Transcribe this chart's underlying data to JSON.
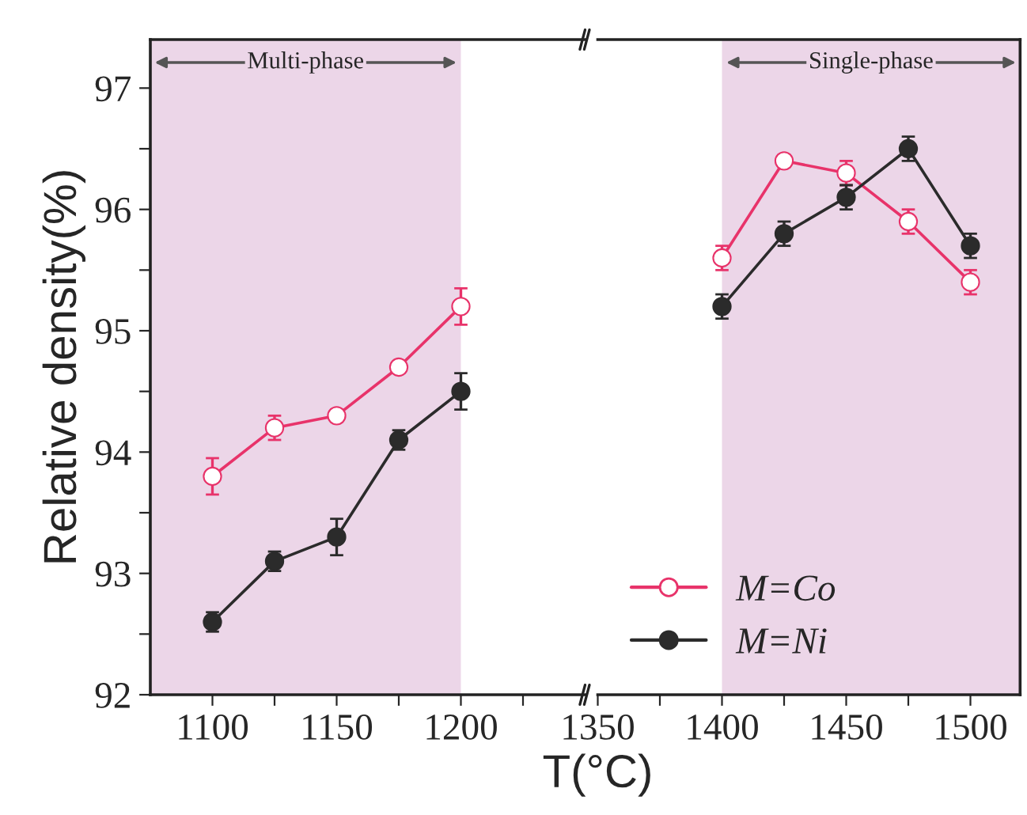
{
  "chart_data": [
    {
      "type": "line",
      "ylabel": "Relative density(%)",
      "x": [
        1100,
        1125,
        1150,
        1175,
        1200
      ],
      "xlim": [
        1075,
        1250
      ],
      "xticks": [
        1100,
        {
          "value": 1125,
          "label": null
        },
        1150,
        {
          "value": 1175,
          "label": null
        },
        1200,
        {
          "value": 1225,
          "label": null
        }
      ],
      "ylim": [
        92,
        97.4
      ],
      "yticks": [
        92,
        {
          "value": 92.5,
          "label": null
        },
        93,
        {
          "value": 93.5,
          "label": null
        },
        94,
        {
          "value": 94.5,
          "label": null
        },
        95,
        {
          "value": 95.5,
          "label": null
        },
        96,
        {
          "value": 96.5,
          "label": null
        },
        97
      ],
      "grid": false,
      "legend": false,
      "line_style": "solid",
      "bands": [
        {
          "axis": "x",
          "from": 1075,
          "to": 1200,
          "label": "Multi-phase",
          "color": "#ecd6e8"
        }
      ],
      "series": [
        {
          "color": "#e8336a",
          "marker": "circle",
          "values": [
            93.8,
            94.2,
            94.3,
            94.7,
            95.2
          ],
          "errors": [
            0.15,
            0.1,
            0.05,
            0.05,
            0.15
          ]
        },
        {
          "color": "#2b2b2b",
          "marker": "circle",
          "values": [
            92.6,
            93.1,
            93.3,
            94.1,
            94.5
          ],
          "errors": [
            0.08,
            0.08,
            0.15,
            0.08,
            0.15
          ]
        }
      ]
    },
    {
      "type": "line",
      "xlabel": "T(°C)",
      "x": [
        1400,
        1425,
        1450,
        1475,
        1500
      ],
      "xlim": [
        1350,
        1520
      ],
      "xticks": [
        1350,
        {
          "value": 1375,
          "label": null
        },
        1400,
        {
          "value": 1425,
          "label": null
        },
        1450,
        {
          "value": 1475,
          "label": null
        },
        1500
      ],
      "ylim": [
        92,
        97.4
      ],
      "tick_labels": "x",
      "grid": false,
      "legend": "bottom left",
      "line_style": "solid",
      "bands": [
        {
          "axis": "x",
          "from": 1400,
          "to": 1520,
          "label": "Single-phase",
          "color": "#ecd6e8"
        }
      ],
      "series": [
        {
          "name": "M=Co",
          "color": "#e8336a",
          "marker": "circle",
          "values": [
            95.6,
            96.4,
            96.3,
            95.9,
            95.4
          ],
          "errors": [
            0.1,
            0.05,
            0.1,
            0.1,
            0.1
          ]
        },
        {
          "name": "M=Ni",
          "color": "#2b2b2b",
          "marker": "circle",
          "values": [
            95.2,
            95.8,
            96.1,
            96.5,
            95.7
          ],
          "errors": [
            0.1,
            0.1,
            0.1,
            0.1,
            0.1
          ]
        }
      ]
    }
  ]
}
